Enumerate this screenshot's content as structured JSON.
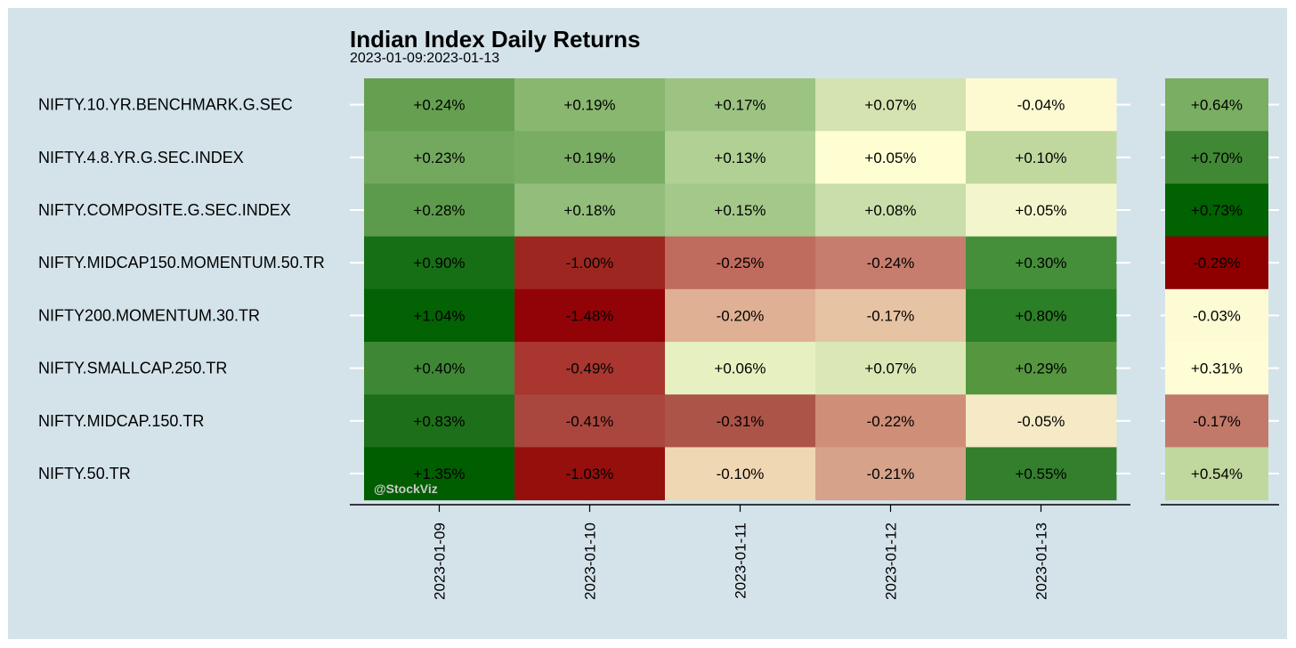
{
  "chart_data": {
    "type": "heatmap",
    "title": "Indian Index Daily Returns",
    "subtitle": "2023-01-09:2023-01-13",
    "watermark": "@StockViz",
    "rows": [
      "NIFTY.10.YR.BENCHMARK.G.SEC",
      "NIFTY.4.8.YR.G.SEC.INDEX",
      "NIFTY.COMPOSITE.G.SEC.INDEX",
      "NIFTY.MIDCAP150.MOMENTUM.50.TR",
      "NIFTY200.MOMENTUM.30.TR",
      "NIFTY.SMALLCAP.250.TR",
      "NIFTY.MIDCAP.150.TR",
      "NIFTY.50.TR"
    ],
    "columns": [
      "2023-01-09",
      "2023-01-10",
      "2023-01-11",
      "2023-01-12",
      "2023-01-13"
    ],
    "values": [
      [
        0.24,
        0.19,
        0.17,
        0.07,
        -0.04
      ],
      [
        0.23,
        0.19,
        0.13,
        0.05,
        0.1
      ],
      [
        0.28,
        0.18,
        0.15,
        0.08,
        0.05
      ],
      [
        0.9,
        -1.0,
        -0.25,
        -0.24,
        0.3
      ],
      [
        1.04,
        -1.48,
        -0.2,
        -0.17,
        0.8
      ],
      [
        0.4,
        -0.49,
        0.06,
        0.07,
        0.29
      ],
      [
        0.83,
        -0.41,
        -0.31,
        -0.22,
        -0.05
      ],
      [
        1.35,
        -1.03,
        -0.1,
        -0.21,
        0.55
      ]
    ],
    "labels": [
      [
        "+0.24%",
        "+0.19%",
        "+0.17%",
        "+0.07%",
        "-0.04%"
      ],
      [
        "+0.23%",
        "+0.19%",
        "+0.13%",
        "+0.05%",
        "+0.10%"
      ],
      [
        "+0.28%",
        "+0.18%",
        "+0.15%",
        "+0.08%",
        "+0.05%"
      ],
      [
        "+0.90%",
        "-1.00%",
        "-0.25%",
        "-0.24%",
        "+0.30%"
      ],
      [
        "+1.04%",
        "-1.48%",
        "-0.20%",
        "-0.17%",
        "+0.80%"
      ],
      [
        "+0.40%",
        "-0.49%",
        "+0.06%",
        "+0.07%",
        "+0.29%"
      ],
      [
        "+0.83%",
        "-0.41%",
        "-0.31%",
        "-0.22%",
        "-0.05%"
      ],
      [
        "+1.35%",
        "-1.03%",
        "-0.10%",
        "-0.21%",
        "+0.55%"
      ]
    ],
    "cell_colors": [
      [
        "#65a051",
        "#89b770",
        "#9cc382",
        "#d4e3af",
        "#fdfad2"
      ],
      [
        "#73a95f",
        "#7aad64",
        "#b0d094",
        "#fffed2",
        "#c0d89e"
      ],
      [
        "#5c9b4b",
        "#92bd7a",
        "#a4c88a",
        "#c9deaa",
        "#f3f6cc"
      ],
      [
        "#176f15",
        "#9d2720",
        "#bf6b5d",
        "#c77d6d",
        "#458f3a"
      ],
      [
        "#036204",
        "#920307",
        "#dfb094",
        "#e6c3a3",
        "#2b7f26"
      ],
      [
        "#3e8835",
        "#a9372f",
        "#e7f0c0",
        "#dbe8b5",
        "#55963f"
      ],
      [
        "#1d7019",
        "#a9463d",
        "#ac5448",
        "#cf8e78",
        "#f5eac5"
      ],
      [
        "#005e00",
        "#950f0d",
        "#f0d7b3",
        "#d6a28a",
        "#337f2d"
      ]
    ],
    "summary_values": [
      0.64,
      0.7,
      0.73,
      -0.29,
      -0.03,
      0.31,
      -0.17,
      0.54
    ],
    "summary_labels": [
      "+0.64%",
      "+0.70%",
      "+0.73%",
      "-0.29%",
      "-0.03%",
      "+0.31%",
      "-0.17%",
      "+0.54%"
    ],
    "summary_colors": [
      "#7aae63",
      "#408834",
      "#006200",
      "#8e0000",
      "#fdfbd4",
      "#fefdd5",
      "#c27969",
      "#c0d89d"
    ]
  }
}
